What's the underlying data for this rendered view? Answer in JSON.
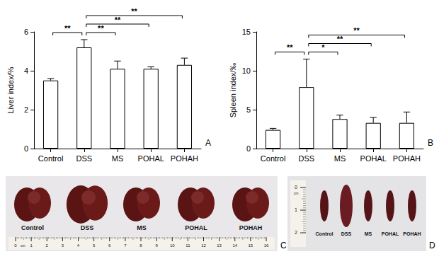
{
  "chart_data": [
    {
      "type": "bar",
      "panel": "A",
      "y_label": "Liver index/%",
      "categories": [
        "Control",
        "DSS",
        "MS",
        "POHAL",
        "POHAH"
      ],
      "values": [
        3.5,
        5.2,
        4.1,
        4.1,
        4.3
      ],
      "errors": [
        0.1,
        0.4,
        0.4,
        0.1,
        0.35
      ],
      "color": "#ffffff",
      "ylim": [
        0,
        6
      ],
      "yticks": [
        0,
        2,
        4,
        6
      ],
      "grid": false,
      "significance": [
        {
          "from": "Control",
          "to": "DSS",
          "label": "**"
        },
        {
          "from": "DSS",
          "to": "MS",
          "label": "**"
        },
        {
          "from": "DSS",
          "to": "POHAL",
          "label": "**"
        },
        {
          "from": "DSS",
          "to": "POHAH",
          "label": "**"
        }
      ]
    },
    {
      "type": "bar",
      "panel": "B",
      "y_label": "Spleen index/‰",
      "categories": [
        "Control",
        "DSS",
        "MS",
        "POHAL",
        "POHAH"
      ],
      "values": [
        2.4,
        7.9,
        3.8,
        3.3,
        3.3
      ],
      "errors": [
        0.2,
        3.6,
        0.5,
        0.7,
        1.4
      ],
      "color": "#ffffff",
      "ylim": [
        0,
        15
      ],
      "yticks": [
        0,
        5,
        10,
        15
      ],
      "grid": false,
      "significance": [
        {
          "from": "Control",
          "to": "DSS",
          "label": "**"
        },
        {
          "from": "DSS",
          "to": "MS",
          "label": "*"
        },
        {
          "from": "DSS",
          "to": "POHAL",
          "label": "**"
        },
        {
          "from": "DSS",
          "to": "POHAH",
          "label": "**"
        }
      ]
    }
  ],
  "photos": [
    {
      "panel": "C",
      "subject": "liver",
      "labels": [
        "Control",
        "DSS",
        "MS",
        "POHAL",
        "POHAH"
      ],
      "ruler_unit": "cm",
      "ruler_labels": [
        "0",
        "1",
        "2",
        "3",
        "4",
        "5",
        "6",
        "7",
        "8",
        "9",
        "10",
        "11",
        "12",
        "13",
        "14",
        "15",
        "16"
      ]
    },
    {
      "panel": "D",
      "subject": "spleen",
      "labels": [
        "Control",
        "DSS",
        "MS",
        "POHAL",
        "POHAH"
      ],
      "ruler_unit": "cm",
      "ruler_labels": [
        "0",
        "1",
        "2"
      ]
    }
  ]
}
